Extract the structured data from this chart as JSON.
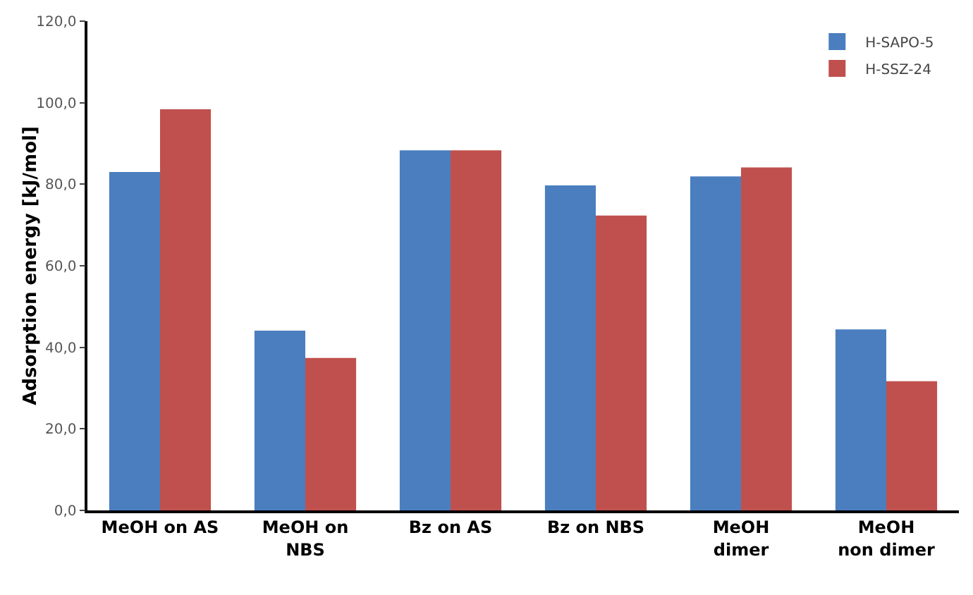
{
  "chart_data": {
    "type": "bar",
    "ylabel": "Adsorption energy [kJ/mol]",
    "categories": [
      "MeOH on AS",
      "MeOH on\nNBS",
      "Bz on AS",
      "Bz on NBS",
      "MeOH\ndimer",
      "MeOH\nnon dimer"
    ],
    "series": [
      {
        "name": "H-SAPO-5",
        "color": "#4a7ebf",
        "values": [
          83.0,
          44.1,
          88.3,
          79.7,
          81.9,
          44.4
        ]
      },
      {
        "name": "H-SSZ-24",
        "color": "#c0504d",
        "values": [
          98.4,
          37.4,
          88.3,
          72.3,
          84.1,
          31.7
        ]
      }
    ],
    "ylim": [
      0,
      120
    ],
    "yticks": [
      {
        "value": 0,
        "label": "0,0"
      },
      {
        "value": 20,
        "label": "20,0"
      },
      {
        "value": 40,
        "label": "40,0"
      },
      {
        "value": 60,
        "label": "60,0"
      },
      {
        "value": 80,
        "label": "80,0"
      },
      {
        "value": 100,
        "label": "100,0"
      },
      {
        "value": 120,
        "label": "120,0"
      }
    ],
    "grid": false,
    "legend": "top right"
  }
}
